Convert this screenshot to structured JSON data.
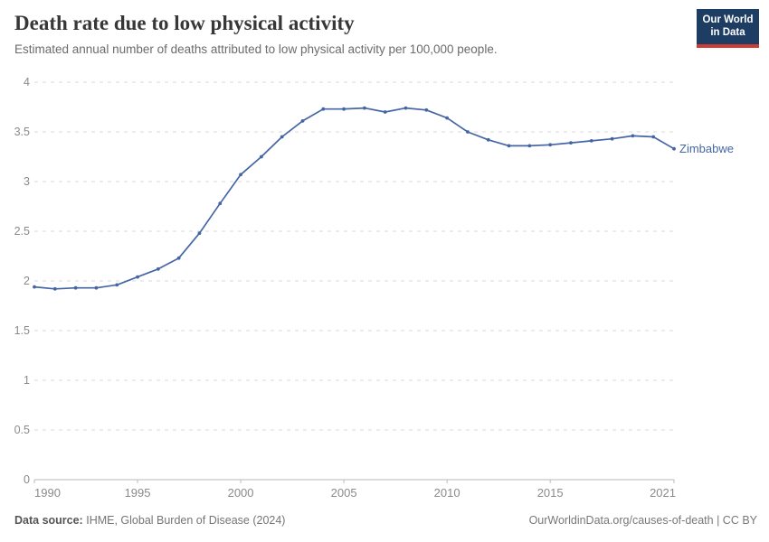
{
  "logo": {
    "line1": "Our World",
    "line2": "in Data"
  },
  "footer": {
    "source_label": "Data source:",
    "source_text": "IHME, Global Burden of Disease (2024)",
    "link": "OurWorldinData.org/causes-of-death | CC BY"
  },
  "colors": {
    "line": "#4566a4",
    "gridline": "#d9d9d9",
    "axis": "#bababa",
    "tick_label": "#8a8a8a",
    "logo_bg": "#1d3d63",
    "logo_bar": "#cd3d34"
  },
  "chart_data": {
    "type": "line",
    "title": "Death rate due to low physical activity",
    "subtitle": "Estimated annual number of deaths attributed to low physical activity per 100,000 people.",
    "xlabel": "",
    "ylabel": "",
    "xlim": [
      1990,
      2021
    ],
    "ylim": [
      0,
      4
    ],
    "x_ticks": [
      1990,
      1995,
      2000,
      2005,
      2010,
      2015,
      2021
    ],
    "y_ticks": [
      0,
      0.5,
      1,
      1.5,
      2,
      2.5,
      3,
      3.5,
      4
    ],
    "grid": "horizontal-dashed",
    "legend_position": "line-end-label",
    "series": [
      {
        "name": "Zimbabwe",
        "color": "#4566a4",
        "x": [
          1990,
          1991,
          1992,
          1993,
          1994,
          1995,
          1996,
          1997,
          1998,
          1999,
          2000,
          2001,
          2002,
          2003,
          2004,
          2005,
          2006,
          2007,
          2008,
          2009,
          2010,
          2011,
          2012,
          2013,
          2014,
          2015,
          2016,
          2017,
          2018,
          2019,
          2020,
          2021
        ],
        "values": [
          1.94,
          1.92,
          1.93,
          1.93,
          1.96,
          2.04,
          2.12,
          2.23,
          2.48,
          2.78,
          3.07,
          3.25,
          3.45,
          3.61,
          3.73,
          3.73,
          3.74,
          3.7,
          3.74,
          3.72,
          3.64,
          3.5,
          3.42,
          3.36,
          3.36,
          3.37,
          3.39,
          3.41,
          3.43,
          3.46,
          3.45,
          3.33
        ]
      }
    ]
  }
}
